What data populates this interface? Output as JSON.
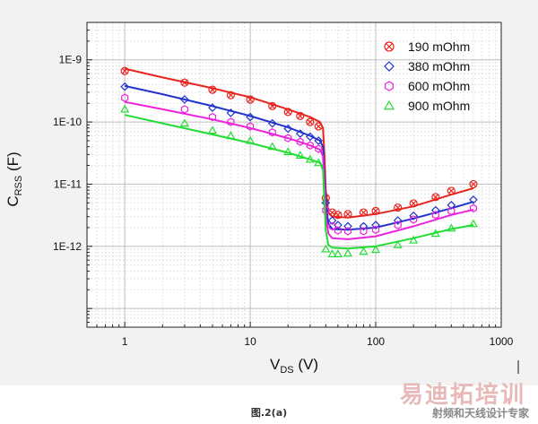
{
  "chart_data": {
    "type": "scatter",
    "xlabel": "V",
    "xlabel_sub": "DS",
    "xlabel_unit": " (V)",
    "ylabel": "C",
    "ylabel_sub": "RSS",
    "ylabel_unit": " (F)",
    "xscale": "log",
    "yscale": "log",
    "xlim": [
      0.5,
      1000
    ],
    "ylim": [
      5e-14,
      4e-09
    ],
    "grid": true,
    "legend_position": "top-right",
    "x_tick_labels": [
      "1",
      "10",
      "100",
      "1000"
    ],
    "x_ticks": [
      1,
      10,
      100,
      1000
    ],
    "y_tick_labels": [
      "1E-12",
      "1E-11",
      "1E-10",
      "1E-9"
    ],
    "y_ticks": [
      1e-12,
      1e-11,
      1e-10,
      1e-09
    ],
    "series": [
      {
        "name": "190 mOhm",
        "color": "#e8251f",
        "marker": "circle-x",
        "measured": [
          [
            1,
            6.6e-10
          ],
          [
            3,
            4.3e-10
          ],
          [
            5,
            3.3e-10
          ],
          [
            7,
            2.7e-10
          ],
          [
            10,
            2.3e-10
          ],
          [
            15,
            1.8e-10
          ],
          [
            20,
            1.45e-10
          ],
          [
            25,
            1.25e-10
          ],
          [
            30,
            1e-10
          ],
          [
            35,
            8.5e-11
          ],
          [
            40,
            6e-12
          ],
          [
            45,
            3.5e-12
          ],
          [
            50,
            3.2e-12
          ],
          [
            60,
            3.3e-12
          ],
          [
            80,
            3.5e-12
          ],
          [
            100,
            3.7e-12
          ],
          [
            150,
            4.2e-12
          ],
          [
            200,
            4.9e-12
          ],
          [
            300,
            6.2e-12
          ],
          [
            400,
            7.8e-12
          ],
          [
            600,
            1e-11
          ]
        ],
        "simulated": [
          [
            1,
            7.2e-10
          ],
          [
            2,
            5.2e-10
          ],
          [
            5,
            3.5e-10
          ],
          [
            10,
            2.5e-10
          ],
          [
            20,
            1.6e-10
          ],
          [
            30,
            1.2e-10
          ],
          [
            36,
            1e-10
          ],
          [
            38,
            8e-11
          ],
          [
            39,
            3e-11
          ],
          [
            40,
            8e-12
          ],
          [
            42,
            3.5e-12
          ],
          [
            45,
            3e-12
          ],
          [
            60,
            2.9e-12
          ],
          [
            100,
            3.3e-12
          ],
          [
            200,
            4.4e-12
          ],
          [
            400,
            6.8e-12
          ],
          [
            600,
            8.6e-12
          ]
        ]
      },
      {
        "name": "380 mOhm",
        "color": "#2233cc",
        "marker": "diamond",
        "measured": [
          [
            1,
            3.7e-10
          ],
          [
            3,
            2.3e-10
          ],
          [
            5,
            1.7e-10
          ],
          [
            7,
            1.4e-10
          ],
          [
            10,
            1.2e-10
          ],
          [
            15,
            9.5e-11
          ],
          [
            20,
            7.8e-11
          ],
          [
            25,
            6.5e-11
          ],
          [
            30,
            5.8e-11
          ],
          [
            35,
            5e-11
          ],
          [
            40,
            5e-12
          ],
          [
            45,
            2.6e-12
          ],
          [
            50,
            2.2e-12
          ],
          [
            60,
            2.1e-12
          ],
          [
            80,
            2.1e-12
          ],
          [
            100,
            2.2e-12
          ],
          [
            150,
            2.6e-12
          ],
          [
            200,
            3.1e-12
          ],
          [
            300,
            3.8e-12
          ],
          [
            400,
            4.6e-12
          ],
          [
            600,
            5.6e-12
          ]
        ],
        "simulated": [
          [
            1,
            3.8e-10
          ],
          [
            2,
            2.8e-10
          ],
          [
            5,
            1.8e-10
          ],
          [
            10,
            1.25e-10
          ],
          [
            20,
            8.2e-11
          ],
          [
            30,
            6e-11
          ],
          [
            36,
            5e-11
          ],
          [
            38,
            4e-11
          ],
          [
            39,
            1.5e-11
          ],
          [
            40,
            5e-12
          ],
          [
            42,
            2.3e-12
          ],
          [
            45,
            1.9e-12
          ],
          [
            60,
            1.85e-12
          ],
          [
            100,
            2e-12
          ],
          [
            200,
            2.8e-12
          ],
          [
            400,
            4.1e-12
          ],
          [
            600,
            5.2e-12
          ]
        ]
      },
      {
        "name": "600 mOhm",
        "color": "#ee22dd",
        "marker": "hexagon",
        "measured": [
          [
            1,
            2.45e-10
          ],
          [
            3,
            1.6e-10
          ],
          [
            5,
            1.2e-10
          ],
          [
            7,
            1e-10
          ],
          [
            10,
            8.5e-11
          ],
          [
            15,
            6.8e-11
          ],
          [
            20,
            5.5e-11
          ],
          [
            25,
            4.8e-11
          ],
          [
            30,
            4.2e-11
          ],
          [
            35,
            3.7e-11
          ],
          [
            40,
            3.8e-12
          ],
          [
            45,
            2.1e-12
          ],
          [
            50,
            1.8e-12
          ],
          [
            60,
            1.75e-12
          ],
          [
            80,
            1.75e-12
          ],
          [
            100,
            1.85e-12
          ],
          [
            150,
            2.2e-12
          ],
          [
            200,
            2.7e-12
          ],
          [
            300,
            3.2e-12
          ],
          [
            400,
            3.7e-12
          ],
          [
            600,
            4.1e-12
          ]
        ],
        "simulated": [
          [
            1,
            2.1e-10
          ],
          [
            2,
            1.6e-10
          ],
          [
            5,
            1.1e-10
          ],
          [
            10,
            8e-11
          ],
          [
            20,
            5.5e-11
          ],
          [
            30,
            4.2e-11
          ],
          [
            36,
            3.6e-11
          ],
          [
            38,
            2.8e-11
          ],
          [
            39,
            9e-12
          ],
          [
            40,
            3e-12
          ],
          [
            42,
            1.6e-12
          ],
          [
            45,
            1.35e-12
          ],
          [
            60,
            1.3e-12
          ],
          [
            100,
            1.45e-12
          ],
          [
            200,
            2.1e-12
          ],
          [
            400,
            3.2e-12
          ],
          [
            600,
            3.9e-12
          ]
        ]
      },
      {
        "name": "900 mOhm",
        "color": "#22dd33",
        "marker": "triangle",
        "measured": [
          [
            1,
            1.6e-10
          ],
          [
            3,
            9.5e-11
          ],
          [
            5,
            7.3e-11
          ],
          [
            7,
            6e-11
          ],
          [
            10,
            5e-11
          ],
          [
            15,
            4e-11
          ],
          [
            20,
            3.3e-11
          ],
          [
            25,
            2.9e-11
          ],
          [
            30,
            2.5e-11
          ],
          [
            35,
            2.2e-11
          ],
          [
            40,
            9e-13
          ],
          [
            45,
            7.5e-13
          ],
          [
            50,
            7.5e-13
          ],
          [
            60,
            7.7e-13
          ],
          [
            80,
            8.2e-13
          ],
          [
            100,
            8.8e-13
          ],
          [
            150,
            1.05e-12
          ],
          [
            200,
            1.25e-12
          ],
          [
            300,
            1.6e-12
          ],
          [
            400,
            1.95e-12
          ],
          [
            600,
            2.3e-12
          ]
        ],
        "simulated": [
          [
            1,
            1.3e-10
          ],
          [
            2,
            9.5e-11
          ],
          [
            5,
            6.3e-11
          ],
          [
            10,
            4.6e-11
          ],
          [
            20,
            3.2e-11
          ],
          [
            30,
            2.5e-11
          ],
          [
            36,
            2.2e-11
          ],
          [
            38,
            1.7e-11
          ],
          [
            39,
            5e-12
          ],
          [
            40,
            1.8e-12
          ],
          [
            42,
            1.05e-12
          ],
          [
            45,
            9.5e-13
          ],
          [
            60,
            9.2e-13
          ],
          [
            100,
            1e-12
          ],
          [
            200,
            1.35e-12
          ],
          [
            400,
            1.9e-12
          ],
          [
            600,
            2.2e-12
          ]
        ]
      }
    ]
  },
  "caption": "图.2(a)",
  "watermark": {
    "main": "易迪拓培训",
    "sub": "射频和天线设计专家"
  }
}
